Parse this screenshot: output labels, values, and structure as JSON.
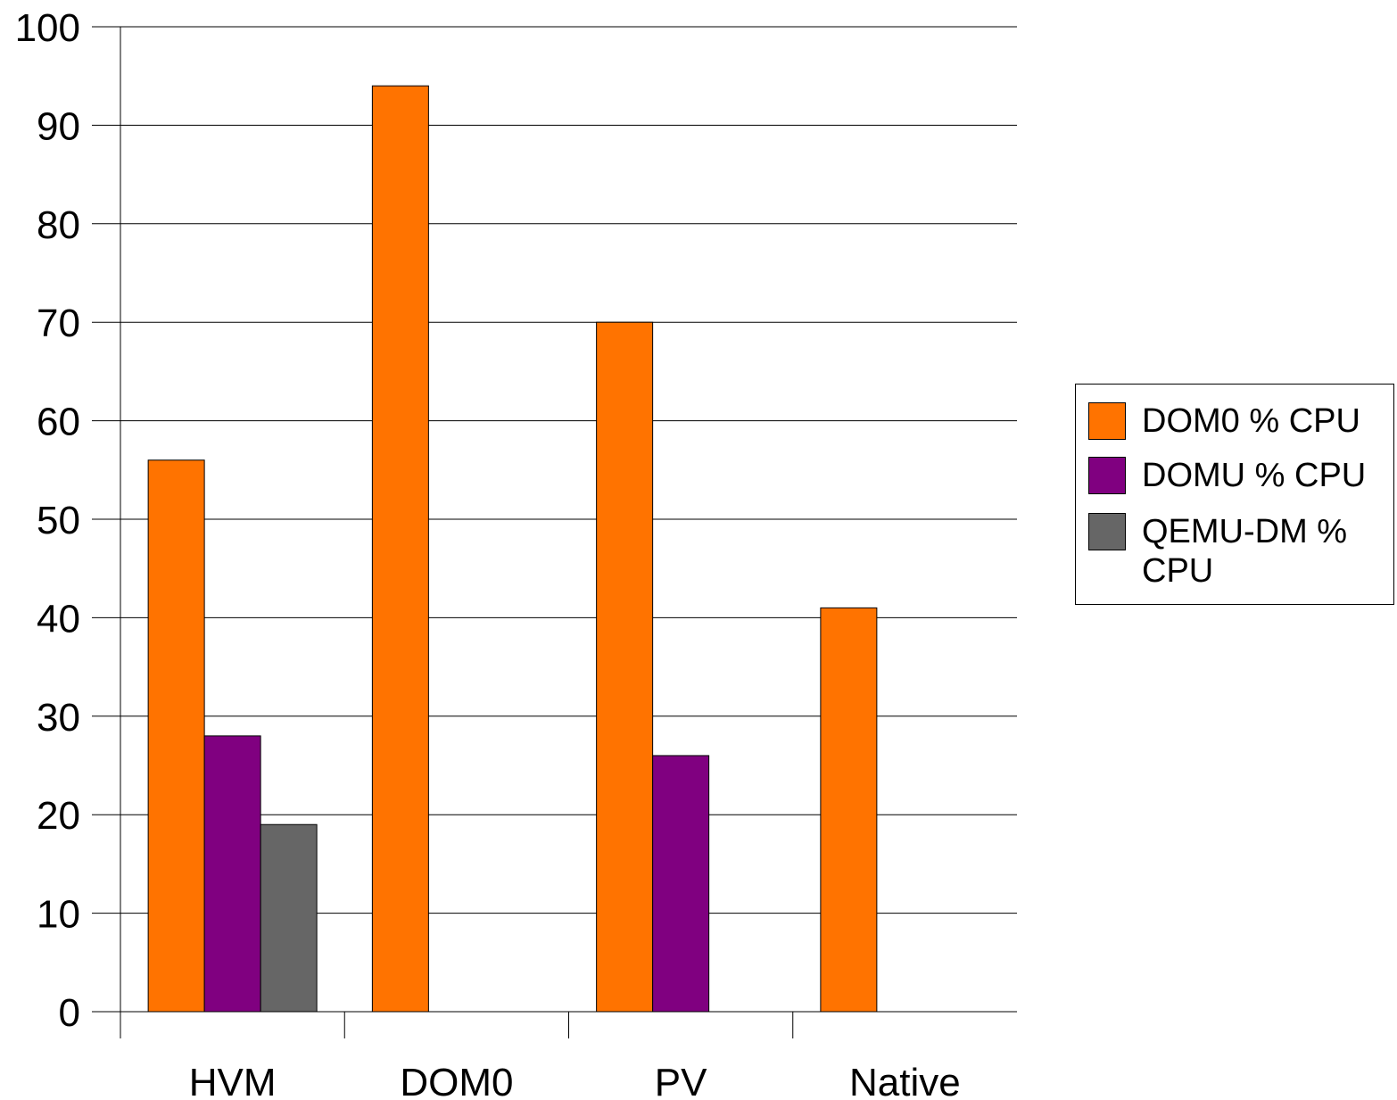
{
  "chart_data": {
    "type": "bar",
    "categories": [
      "HVM",
      "DOM0",
      "PV",
      "Native"
    ],
    "series": [
      {
        "name": "DOM0 % CPU",
        "color": "#ff7300",
        "values": [
          56,
          94,
          70,
          41
        ]
      },
      {
        "name": "DOMU % CPU",
        "color": "#800080",
        "values": [
          28,
          0,
          26,
          0
        ]
      },
      {
        "name": "QEMU-DM % CPU",
        "color": "#666666",
        "values": [
          19,
          0,
          0,
          0
        ]
      }
    ],
    "ylim": [
      0,
      100
    ],
    "yticks": [
      "0",
      "10",
      "20",
      "30",
      "40",
      "50",
      "60",
      "70",
      "80",
      "90",
      "100"
    ],
    "grid": true,
    "legend_position": "right"
  }
}
